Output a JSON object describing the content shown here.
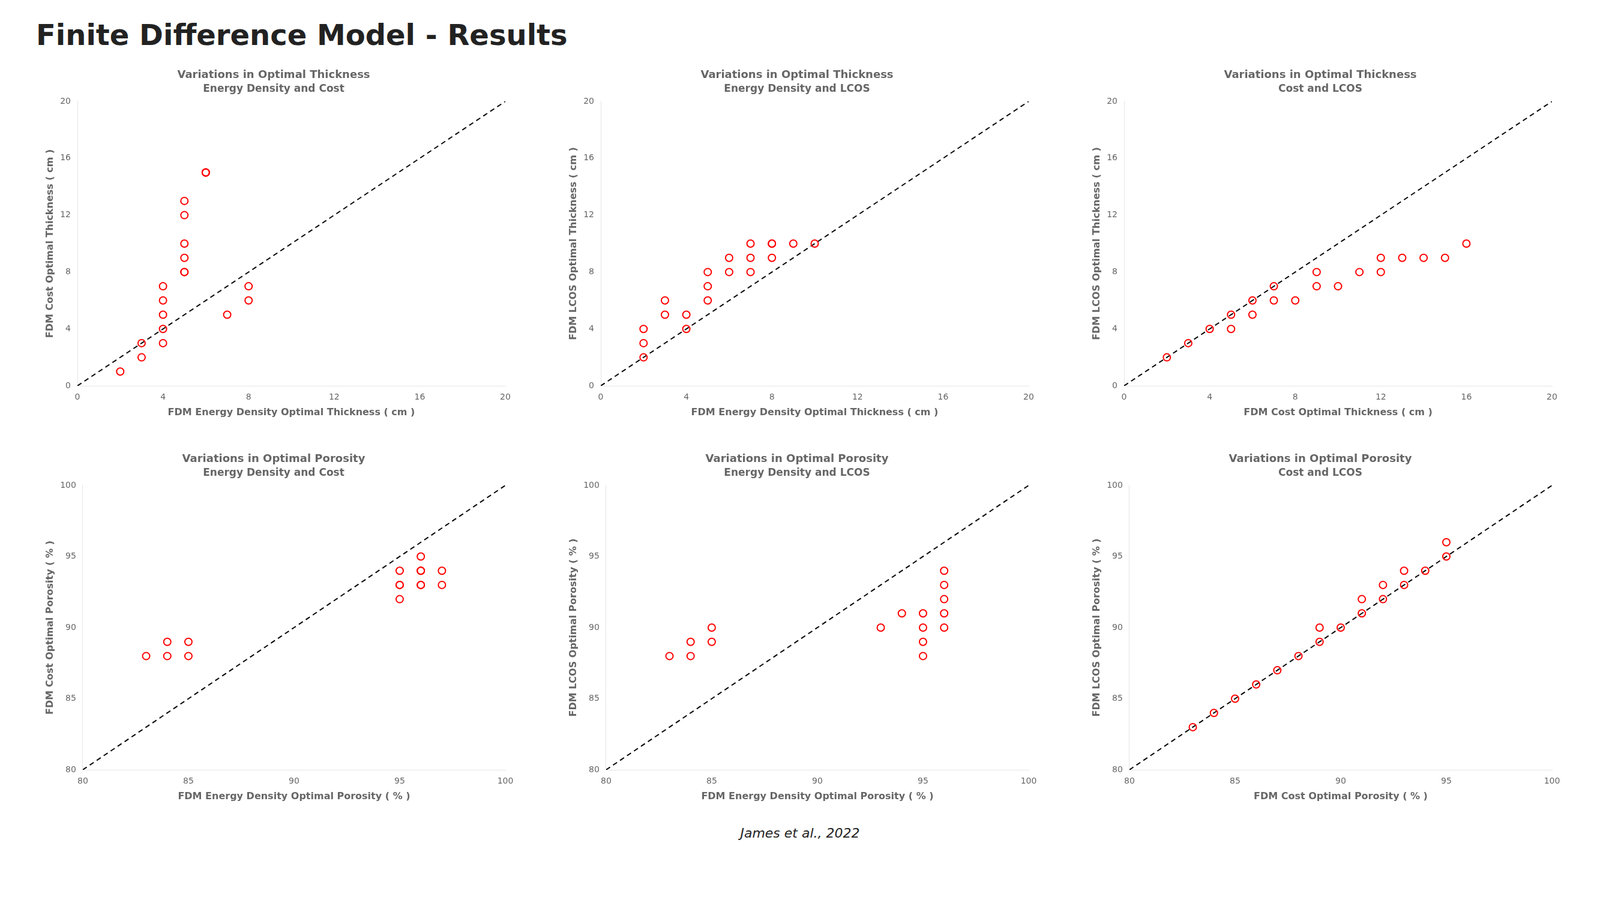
{
  "title": "Finite Difference Model - Results",
  "annotations": [
    "James et al., 2022"
  ],
  "chart_data": [
    {
      "type": "scatter",
      "title": "Variations in Optimal Thickness",
      "subtitle": "Energy Density and Cost",
      "x_label": "FDM Energy Density Optimal Thickness ( cm )",
      "y_label": "FDM Cost Optimal Thickness ( cm )",
      "xlim": [
        0,
        20
      ],
      "ylim": [
        0,
        20
      ],
      "xticks": [
        0,
        4,
        8,
        12,
        16,
        20
      ],
      "yticks": [
        0,
        4,
        8,
        12,
        16,
        20
      ],
      "grid": false,
      "series": [
        {
          "type": "scatter",
          "color": "red",
          "marker": "circle",
          "x": [
            2,
            3,
            3,
            4,
            4,
            4,
            4,
            4,
            5,
            5,
            5,
            5,
            5,
            5,
            6,
            6,
            6,
            7,
            8,
            8
          ],
          "values": [
            1,
            2,
            3,
            3,
            4,
            5,
            6,
            7,
            8,
            8,
            9,
            10,
            12,
            13,
            15,
            15,
            15,
            5,
            6,
            7
          ]
        },
        {
          "type": "line",
          "color": "black",
          "line_style": "dashed",
          "x": [
            0,
            20
          ],
          "values": [
            0,
            20
          ]
        }
      ]
    },
    {
      "type": "scatter",
      "title": "Variations in Optimal Thickness",
      "subtitle": "Energy Density and LCOS",
      "x_label": "FDM Energy Density Optimal Thickness ( cm )",
      "y_label": "FDM LCOS Optimal Thickness ( cm )",
      "xlim": [
        0,
        20
      ],
      "ylim": [
        0,
        20
      ],
      "xticks": [
        0,
        4,
        8,
        12,
        16,
        20
      ],
      "yticks": [
        0,
        4,
        8,
        12,
        16,
        20
      ],
      "grid": false,
      "series": [
        {
          "type": "scatter",
          "color": "red",
          "marker": "circle",
          "x": [
            2,
            2,
            2,
            3,
            3,
            4,
            4,
            5,
            5,
            5,
            6,
            6,
            7,
            7,
            7,
            8,
            8,
            8,
            9,
            10
          ],
          "values": [
            2,
            3,
            4,
            5,
            6,
            4,
            5,
            6,
            7,
            8,
            8,
            9,
            8,
            9,
            10,
            9,
            10,
            10,
            10,
            10
          ]
        },
        {
          "type": "line",
          "color": "black",
          "line_style": "dashed",
          "x": [
            0,
            20
          ],
          "values": [
            0,
            20
          ]
        }
      ]
    },
    {
      "type": "scatter",
      "title": "Variations in Optimal Thickness",
      "subtitle": "Cost and LCOS",
      "x_label": "FDM Cost Optimal Thickness ( cm )",
      "y_label": "FDM LCOS Optimal Thickness ( cm )",
      "xlim": [
        0,
        20
      ],
      "ylim": [
        0,
        20
      ],
      "xticks": [
        0,
        4,
        8,
        12,
        16,
        20
      ],
      "yticks": [
        0,
        4,
        8,
        12,
        16,
        20
      ],
      "grid": false,
      "series": [
        {
          "type": "scatter",
          "color": "red",
          "marker": "circle",
          "x": [
            2,
            3,
            4,
            5,
            6,
            7,
            8,
            9,
            10,
            11,
            12,
            13,
            14,
            15,
            16,
            5,
            6,
            7,
            9,
            12
          ],
          "values": [
            2,
            3,
            4,
            4,
            5,
            6,
            6,
            7,
            7,
            8,
            8,
            9,
            9,
            9,
            10,
            5,
            6,
            7,
            8,
            9
          ]
        },
        {
          "type": "line",
          "color": "black",
          "line_style": "dashed",
          "x": [
            0,
            20
          ],
          "values": [
            0,
            20
          ]
        }
      ]
    },
    {
      "type": "scatter",
      "title": "Variations in Optimal Porosity",
      "subtitle": "Energy Density and Cost",
      "x_label": "FDM Energy Density Optimal Porosity ( % )",
      "y_label": "FDM Cost Optimal Porosity ( % )",
      "xlim": [
        80,
        100
      ],
      "ylim": [
        80,
        100
      ],
      "xticks": [
        80,
        85,
        90,
        95,
        100
      ],
      "yticks": [
        80,
        85,
        90,
        95,
        100
      ],
      "grid": false,
      "series": [
        {
          "type": "scatter",
          "color": "red",
          "marker": "circle",
          "x": [
            83,
            84,
            84,
            85,
            85,
            95,
            95,
            95,
            95,
            96,
            96,
            96,
            96,
            96,
            97,
            97
          ],
          "values": [
            88,
            88,
            89,
            88,
            89,
            92,
            93,
            93,
            94,
            93,
            93,
            94,
            94,
            95,
            93,
            94
          ]
        },
        {
          "type": "line",
          "color": "black",
          "line_style": "dashed",
          "x": [
            80,
            100
          ],
          "values": [
            80,
            100
          ]
        }
      ]
    },
    {
      "type": "scatter",
      "title": "Variations in Optimal Porosity",
      "subtitle": "Energy Density and LCOS",
      "x_label": "FDM Energy Density Optimal Porosity ( % )",
      "y_label": "FDM LCOS Optimal Porosity ( % )",
      "xlim": [
        80,
        100
      ],
      "ylim": [
        80,
        100
      ],
      "xticks": [
        80,
        85,
        90,
        95,
        100
      ],
      "yticks": [
        80,
        85,
        90,
        95,
        100
      ],
      "grid": false,
      "series": [
        {
          "type": "scatter",
          "color": "red",
          "marker": "circle",
          "x": [
            83,
            84,
            84,
            85,
            85,
            93,
            94,
            95,
            95,
            95,
            95,
            96,
            96,
            96,
            96,
            96
          ],
          "values": [
            88,
            88,
            89,
            89,
            90,
            90,
            91,
            88,
            89,
            90,
            91,
            90,
            91,
            92,
            93,
            94
          ]
        },
        {
          "type": "line",
          "color": "black",
          "line_style": "dashed",
          "x": [
            80,
            100
          ],
          "values": [
            80,
            100
          ]
        }
      ]
    },
    {
      "type": "scatter",
      "title": "Variations in Optimal Porosity",
      "subtitle": "Cost and LCOS",
      "x_label": "FDM Cost Optimal Porosity ( % )",
      "y_label": "FDM LCOS Optimal Porosity ( % )",
      "xlim": [
        80,
        100
      ],
      "ylim": [
        80,
        100
      ],
      "xticks": [
        80,
        85,
        90,
        95,
        100
      ],
      "yticks": [
        80,
        85,
        90,
        95,
        100
      ],
      "grid": false,
      "series": [
        {
          "type": "scatter",
          "color": "red",
          "marker": "circle",
          "x": [
            83,
            84,
            85,
            86,
            87,
            88,
            89,
            89,
            90,
            91,
            91,
            92,
            92,
            93,
            93,
            94,
            95,
            95
          ],
          "values": [
            83,
            84,
            85,
            86,
            87,
            88,
            89,
            90,
            90,
            91,
            92,
            92,
            93,
            93,
            94,
            94,
            95,
            96
          ]
        },
        {
          "type": "line",
          "color": "black",
          "line_style": "dashed",
          "x": [
            80,
            100
          ],
          "values": [
            80,
            100
          ]
        }
      ]
    }
  ]
}
